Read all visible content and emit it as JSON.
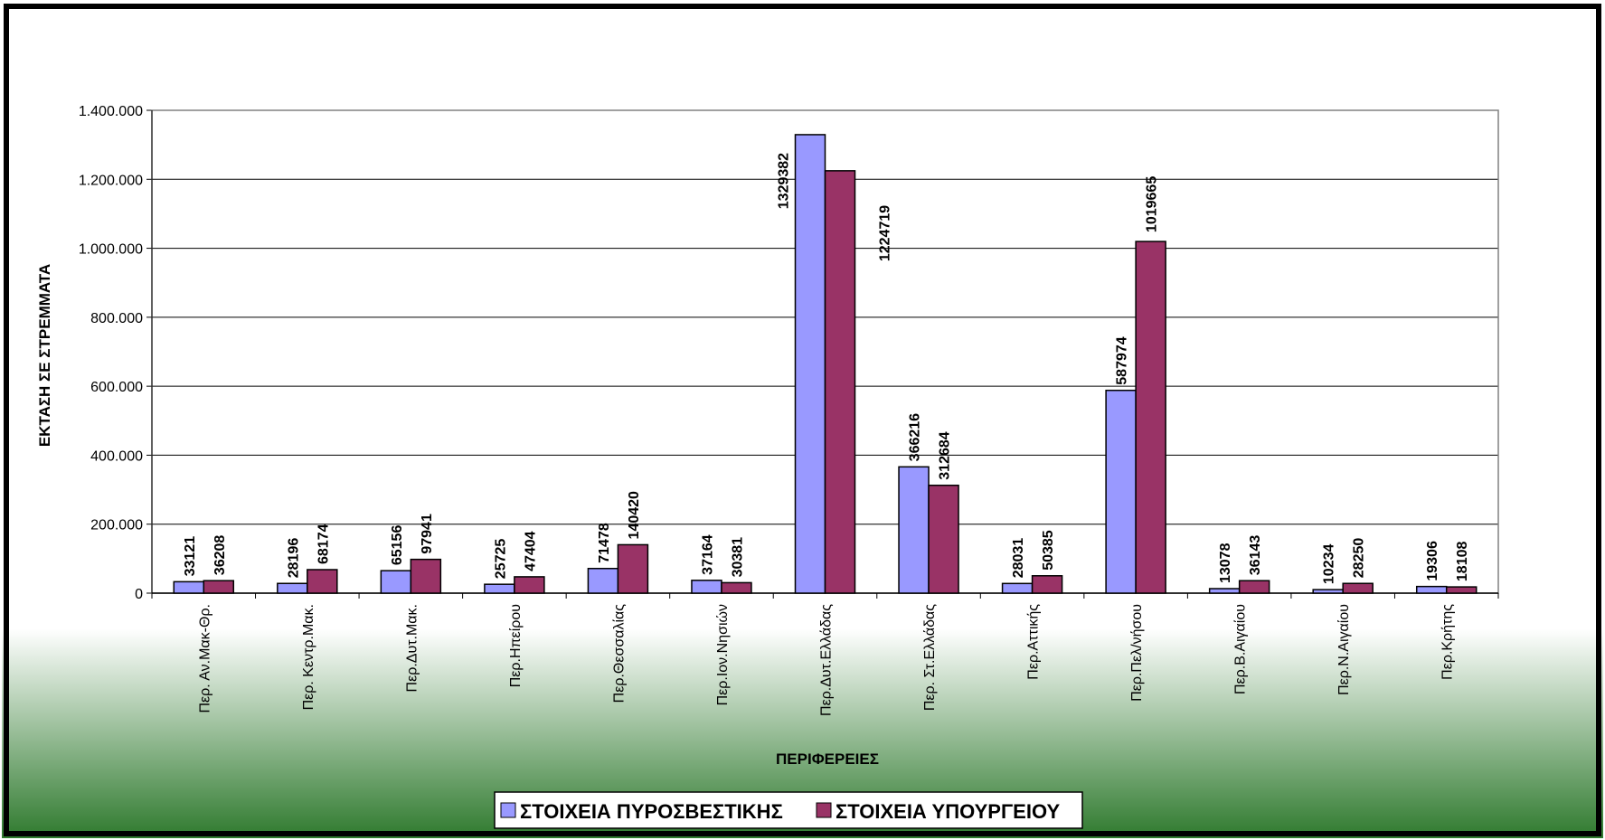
{
  "chart_data": {
    "type": "bar",
    "title": "",
    "xlabel": "ΠΕΡΙΦΕΡΕΙΕΣ",
    "ylabel": "ΕΚΤΑΣΗ ΣΕ ΣΤΡΕΜΜΑΤΑ",
    "ylim": [
      0,
      1400000
    ],
    "yticks": [
      {
        "value": 0,
        "label": "0"
      },
      {
        "value": 200000,
        "label": "200.000"
      },
      {
        "value": 400000,
        "label": "400.000"
      },
      {
        "value": 600000,
        "label": "600.000"
      },
      {
        "value": 800000,
        "label": "800.000"
      },
      {
        "value": 1000000,
        "label": "1.000.000"
      },
      {
        "value": 1200000,
        "label": "1.200.000"
      },
      {
        "value": 1400000,
        "label": "1.400.000"
      }
    ],
    "grid": true,
    "legend_position": "bottom-center",
    "categories": [
      "Περ. Αν.Μακ-Θρ.",
      "Περ. Κεντρ.Μακ.",
      "Περ.Δυτ.Μακ.",
      "Περ.Ηπείρου",
      "Περ.Θεσσαλίας",
      "Περ.Ιον.Νησιών",
      "Περ.Δυτ.Ελλάδας",
      "Περ. Στ.Ελλάδας",
      "Περ.Αττικής",
      "Περ.Πελ/νήσου",
      "Περ.Β.Αιγαίου",
      "Περ.Ν.Αιγαίου",
      "Περ.Κρήτης"
    ],
    "series": [
      {
        "name": "ΣΤΟΙΧΕΙΑ ΠΥΡΟΣΒΕΣΤΙΚΗΣ",
        "color": "#9999ff",
        "values": [
          33121,
          28196,
          65156,
          25725,
          71478,
          37164,
          1329382,
          366216,
          28031,
          587974,
          13078,
          10234,
          19306
        ]
      },
      {
        "name": "ΣΤΟΙΧΕΙΑ ΥΠΟΥΡΓΕΙΟΥ",
        "color": "#993366",
        "values": [
          36208,
          68174,
          97941,
          47404,
          140420,
          30381,
          1224719,
          312684,
          50385,
          1019665,
          36143,
          28250,
          18108
        ]
      }
    ]
  },
  "colors": {
    "gradient_top": "#ffffff",
    "gradient_bottom": "#2f7a2e",
    "border": "#000000",
    "grid": "#000000"
  }
}
